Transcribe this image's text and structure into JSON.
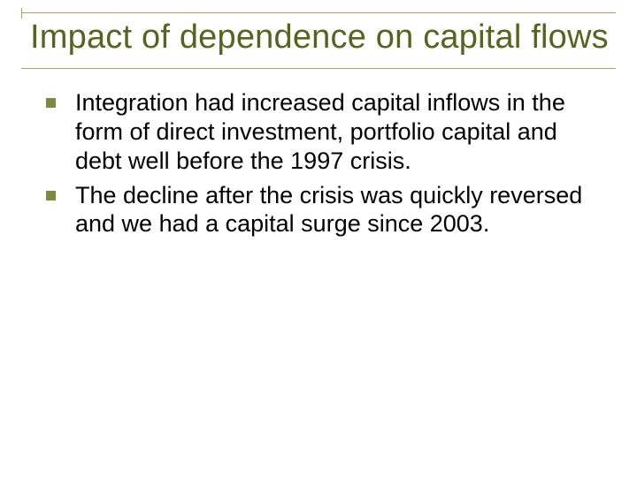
{
  "title_color": "#55641e",
  "rule_color": "#b0a060",
  "bullet_color": "#7d8a42",
  "text_color": "#000000",
  "background_color": "#ffffff",
  "title_fontsize": 38,
  "body_fontsize": 27,
  "title": "Impact of dependence on capital flows",
  "bullets": [
    "Integration had increased capital inflows in the form of direct investment, portfolio capital and debt well before the 1997 crisis.",
    "The decline after the crisis was quickly reversed and we had a capital surge since 2003."
  ]
}
